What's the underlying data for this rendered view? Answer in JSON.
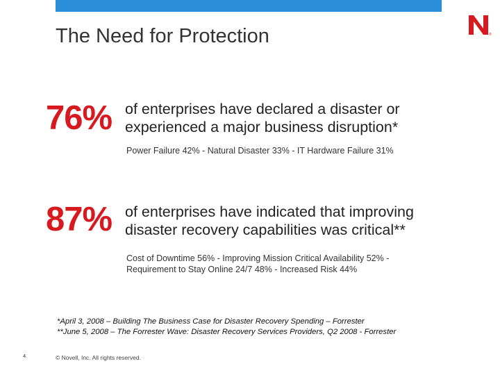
{
  "slide": {
    "title": "The Need for Protection",
    "logo": {
      "letter": "N",
      "mark": "®",
      "color": "#d71920"
    },
    "accent_color": "#2b8ed9",
    "stats": [
      {
        "number": "76%",
        "text_line1": "of enterprises have declared a disaster or",
        "text_line2": "experienced a major business disruption*",
        "detail_line1": "Power Failure 42% - Natural Disaster 33% - IT Hardware Failure 31%",
        "detail_line2": ""
      },
      {
        "number": "87%",
        "text_line1": "of enterprises have indicated that improving",
        "text_line2": "disaster recovery capabilities was critical**",
        "detail_line1": "Cost of Downtime 56% - Improving Mission Critical Availability 52% -",
        "detail_line2": "Requirement to Stay Online 24/7 48% - Increased Risk 44%"
      }
    ],
    "footnotes": [
      "*April 3, 2008 – Building The Business Case for Disaster Recovery Spending – Forrester",
      "**June 5, 2008 – The Forrester Wave: Disaster Recovery Services Providers, Q2 2008 - Forrester"
    ],
    "page_number": "4",
    "copyright": "© Novell, Inc. All rights reserved."
  }
}
